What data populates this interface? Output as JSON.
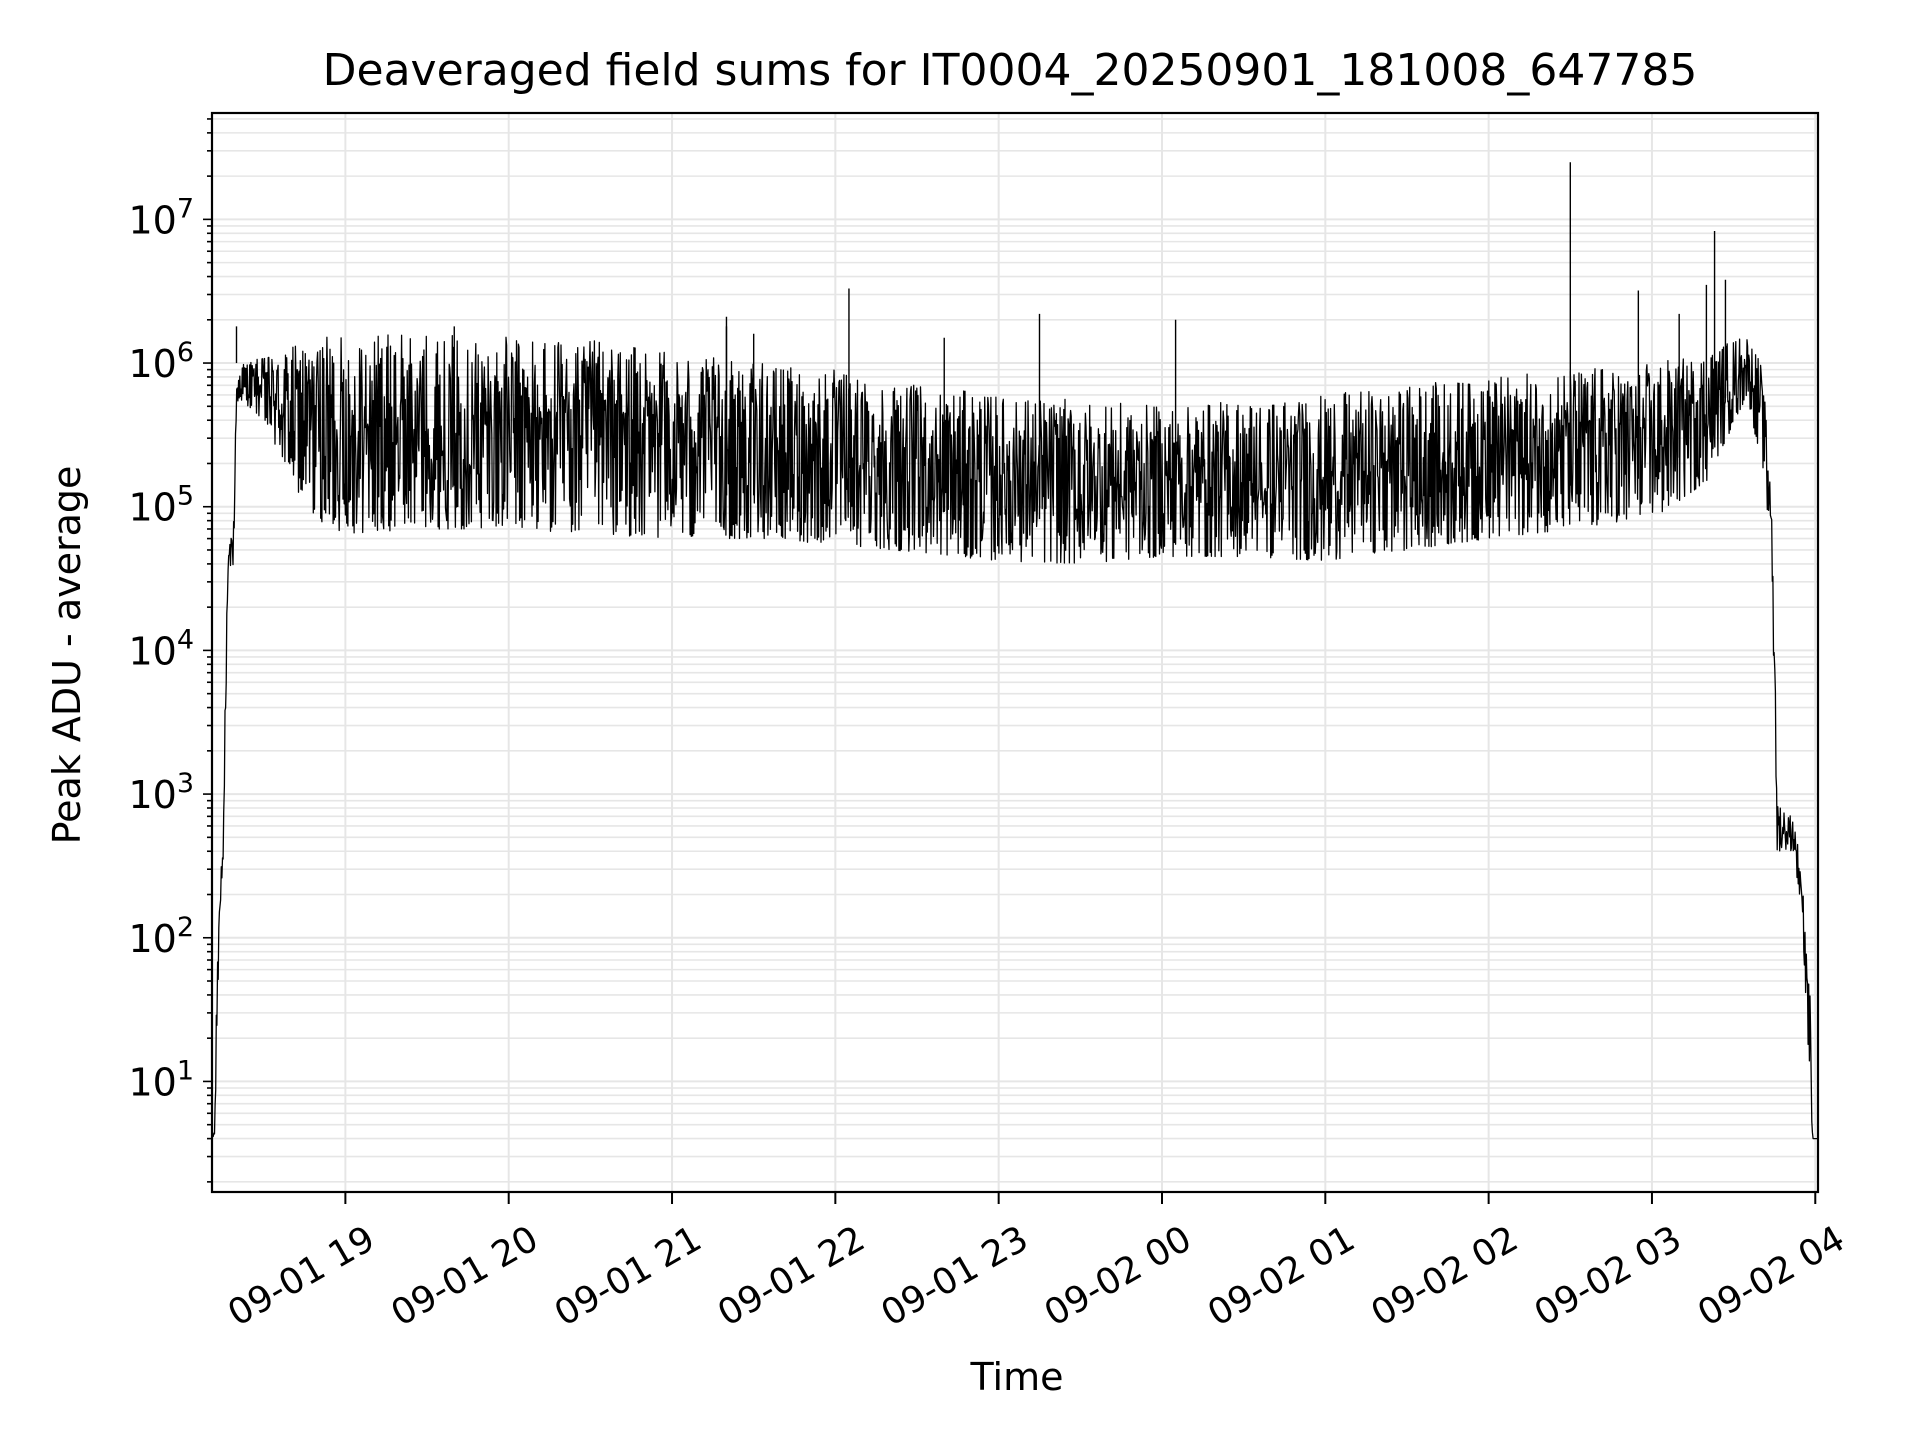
{
  "chart_data": {
    "type": "line",
    "title": "Deaveraged field sums for IT0004_20250901_181008_647785",
    "xlabel": "Time",
    "ylabel": "Peak ADU - average",
    "y_scale": "log",
    "ylim": [
      1.7,
      55000000
    ],
    "xlim": [
      "2025-09-01 18:11",
      "2025-09-02 04:01"
    ],
    "grid": true,
    "line_color": "#000000",
    "grid_color": "#e6e6e6",
    "x_ticks": [
      {
        "value": "2025-09-01 19:00",
        "label": "09-01 19"
      },
      {
        "value": "2025-09-01 20:00",
        "label": "09-01 20"
      },
      {
        "value": "2025-09-01 21:00",
        "label": "09-01 21"
      },
      {
        "value": "2025-09-01 22:00",
        "label": "09-01 22"
      },
      {
        "value": "2025-09-01 23:00",
        "label": "09-01 23"
      },
      {
        "value": "2025-09-02 00:00",
        "label": "09-02 00"
      },
      {
        "value": "2025-09-02 01:00",
        "label": "09-02 01"
      },
      {
        "value": "2025-09-02 02:00",
        "label": "09-02 02"
      },
      {
        "value": "2025-09-02 03:00",
        "label": "09-02 03"
      },
      {
        "value": "2025-09-02 04:00",
        "label": "09-02 04"
      }
    ],
    "y_ticks": [
      {
        "value": 10,
        "base": "10",
        "exp": "1"
      },
      {
        "value": 100,
        "base": "10",
        "exp": "2"
      },
      {
        "value": 1000,
        "base": "10",
        "exp": "3"
      },
      {
        "value": 10000,
        "base": "10",
        "exp": "4"
      },
      {
        "value": 100000,
        "base": "10",
        "exp": "5"
      },
      {
        "value": 1000000,
        "base": "10",
        "exp": "6"
      },
      {
        "value": 10000000,
        "base": "10",
        "exp": "7"
      }
    ],
    "series": [
      {
        "envelope": [
          {
            "time": "2025-09-01 18:11",
            "low": 4,
            "high": 4
          },
          {
            "time": "2025-09-01 18:12",
            "low": 4,
            "high": 5
          },
          {
            "time": "2025-09-01 18:13",
            "low": 30,
            "high": 100
          },
          {
            "time": "2025-09-01 18:14",
            "low": 150,
            "high": 250
          },
          {
            "time": "2025-09-01 18:15",
            "low": 300,
            "high": 600
          },
          {
            "time": "2025-09-01 18:16",
            "low": 2000,
            "high": 10000
          },
          {
            "time": "2025-09-01 18:17",
            "low": 35000,
            "high": 45000
          },
          {
            "time": "2025-09-01 18:19",
            "low": 40000,
            "high": 90000
          },
          {
            "time": "2025-09-01 18:20",
            "low": 500000,
            "high": 800000
          },
          {
            "time": "2025-09-01 18:22",
            "low": 550000,
            "high": 1000000
          },
          {
            "time": "2025-09-01 18:30",
            "low": 400000,
            "high": 1100000
          },
          {
            "time": "2025-09-01 18:40",
            "low": 150000,
            "high": 1300000
          },
          {
            "time": "2025-09-01 18:50",
            "low": 80000,
            "high": 1500000
          },
          {
            "time": "2025-09-01 19:00",
            "low": 65000,
            "high": 1600000
          },
          {
            "time": "2025-09-01 19:30",
            "low": 70000,
            "high": 1600000
          },
          {
            "time": "2025-09-01 20:00",
            "low": 70000,
            "high": 1550000
          },
          {
            "time": "2025-09-01 20:30",
            "low": 65000,
            "high": 1450000
          },
          {
            "time": "2025-09-01 21:00",
            "low": 60000,
            "high": 1200000
          },
          {
            "time": "2025-09-01 21:30",
            "low": 60000,
            "high": 1000000
          },
          {
            "time": "2025-09-01 22:00",
            "low": 55000,
            "high": 900000
          },
          {
            "time": "2025-09-01 22:30",
            "low": 48000,
            "high": 700000
          },
          {
            "time": "2025-09-01 23:00",
            "low": 42000,
            "high": 600000
          },
          {
            "time": "2025-09-01 23:30",
            "low": 40000,
            "high": 550000
          },
          {
            "time": "2025-09-02 00:00",
            "low": 45000,
            "high": 500000
          },
          {
            "time": "2025-09-02 00:30",
            "low": 45000,
            "high": 550000
          },
          {
            "time": "2025-09-02 01:00",
            "low": 42000,
            "high": 600000
          },
          {
            "time": "2025-09-02 01:30",
            "low": 50000,
            "high": 700000
          },
          {
            "time": "2025-09-02 02:00",
            "low": 60000,
            "high": 800000
          },
          {
            "time": "2025-09-02 02:30",
            "low": 70000,
            "high": 900000
          },
          {
            "time": "2025-09-02 03:00",
            "low": 80000,
            "high": 1000000
          },
          {
            "time": "2025-09-02 03:20",
            "low": 150000,
            "high": 1200000
          },
          {
            "time": "2025-09-02 03:35",
            "low": 600000,
            "high": 1600000
          },
          {
            "time": "2025-09-02 03:40",
            "low": 200000,
            "high": 1000000
          },
          {
            "time": "2025-09-02 03:44",
            "low": 40000,
            "high": 200000
          },
          {
            "time": "2025-09-02 03:46",
            "low": 400,
            "high": 900
          },
          {
            "time": "2025-09-02 03:52",
            "low": 400,
            "high": 700
          },
          {
            "time": "2025-09-02 03:55",
            "low": 150,
            "high": 300
          },
          {
            "time": "2025-09-02 03:58",
            "low": 10,
            "high": 50
          },
          {
            "time": "2025-09-02 03:59",
            "low": 4,
            "high": 4
          },
          {
            "time": "2025-09-02 04:00",
            "low": 4,
            "high": 4
          }
        ],
        "spikes": [
          {
            "time": "2025-09-01 18:20",
            "value": 1800000
          },
          {
            "time": "2025-09-01 19:40",
            "value": 1800000
          },
          {
            "time": "2025-09-01 21:20",
            "value": 1800000
          },
          {
            "time": "2025-09-01 21:30",
            "value": 1600000
          },
          {
            "time": "2025-09-01 21:20",
            "value": 2100000
          },
          {
            "time": "2025-09-01 22:05",
            "value": 3300000
          },
          {
            "time": "2025-09-01 22:40",
            "value": 1500000
          },
          {
            "time": "2025-09-01 23:15",
            "value": 2200000
          },
          {
            "time": "2025-09-02 00:05",
            "value": 2000000
          },
          {
            "time": "2025-09-02 02:30",
            "value": 25000000
          },
          {
            "time": "2025-09-02 02:55",
            "value": 3200000
          },
          {
            "time": "2025-09-02 03:10",
            "value": 2200000
          },
          {
            "time": "2025-09-02 03:20",
            "value": 3500000
          },
          {
            "time": "2025-09-02 03:23",
            "value": 8300000
          },
          {
            "time": "2025-09-02 03:27",
            "value": 3800000
          }
        ]
      }
    ]
  }
}
